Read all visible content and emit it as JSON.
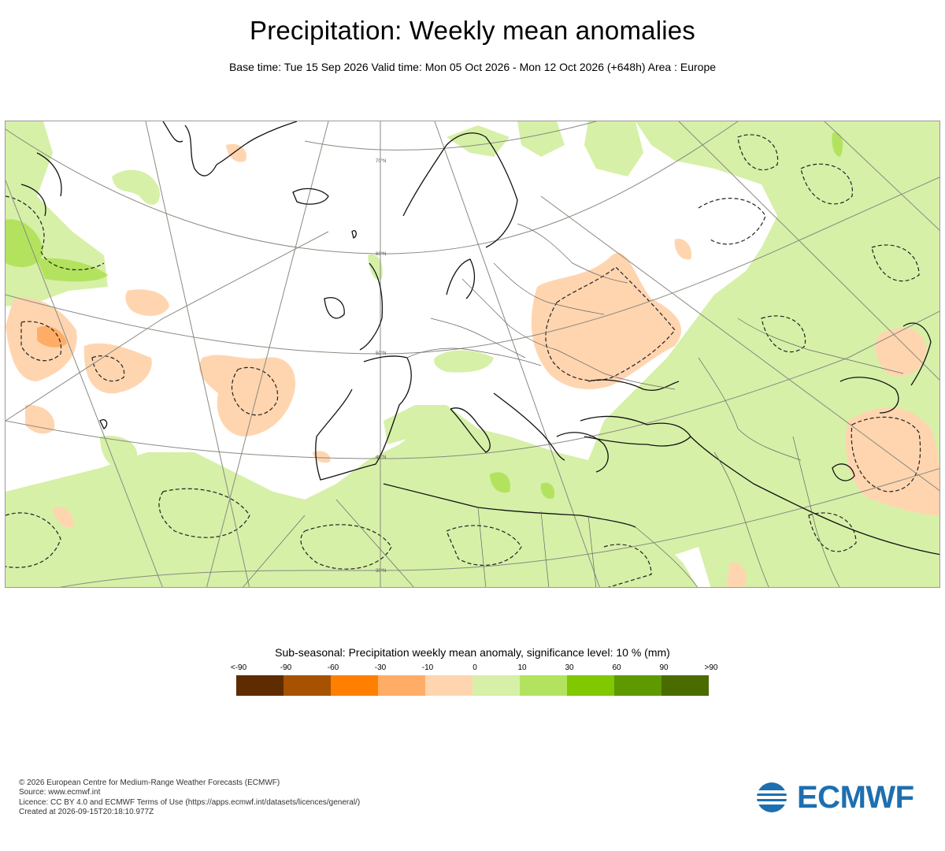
{
  "title": "Precipitation: Weekly mean anomalies",
  "subtitle": "Base time: Tue 15 Sep 2026 Valid time: Mon 05 Oct 2026 - Mon 12 Oct 2026 (+648h) Area : Europe",
  "map": {
    "lat_labels": [
      "70°N",
      "60°N",
      "50°N",
      "40°N",
      "30°N"
    ],
    "fill_colors": {
      "wet_light": "#d6f0a8",
      "wet_medium": "#b3e35e",
      "dry_light": "#ffd5b0",
      "dry_medium": "#ffad66"
    }
  },
  "legend": {
    "title": "Sub-seasonal: Precipitation weekly mean anomaly, significance level: 10 % (mm)",
    "labels": [
      "<-90",
      "-90",
      "-60",
      "-30",
      "-10",
      "0",
      "10",
      "30",
      "60",
      "90",
      ">90"
    ],
    "colors": [
      "#5e2c00",
      "#a65200",
      "#ff7f00",
      "#ffad66",
      "#ffd5b0",
      "#d6f0a8",
      "#b3e35e",
      "#80c800",
      "#5e9900",
      "#4a6b00"
    ]
  },
  "footer": {
    "copyright": "© 2026 European Centre for Medium-Range Weather Forecasts (ECMWF)",
    "source": "Source: www.ecmwf.int",
    "licence": "Licence: CC BY 4.0 and ECMWF Terms of Use (https://apps.ecmwf.int/datasets/licences/general/)",
    "created": "Created at 2026-09-15T20:18:10.977Z"
  },
  "logo": {
    "text": "ECMWF",
    "icon": "ecmwf-logo-icon",
    "color": "#1d6fb0"
  }
}
